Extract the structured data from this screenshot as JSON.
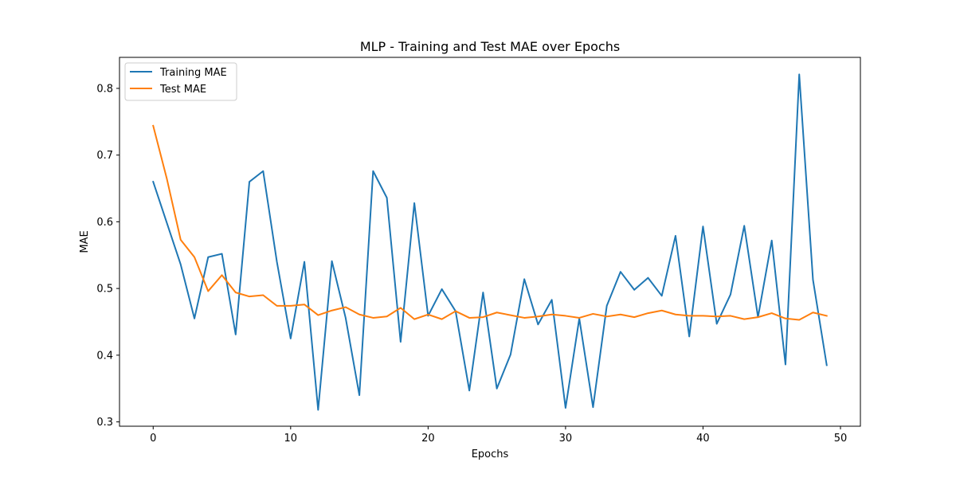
{
  "chart_data": {
    "type": "line",
    "title": "MLP - Training and Test MAE over Epochs",
    "xlabel": "Epochs",
    "ylabel": "MAE",
    "xlim": [
      -2.45,
      51.45
    ],
    "ylim": [
      0.2935,
      0.8465
    ],
    "xticks": [
      0,
      10,
      20,
      30,
      40,
      50
    ],
    "yticks": [
      0.3,
      0.4,
      0.5,
      0.6,
      0.7,
      0.8
    ],
    "grid": false,
    "legend_position": "top-left",
    "x": [
      0,
      1,
      2,
      3,
      4,
      5,
      6,
      7,
      8,
      9,
      10,
      11,
      12,
      13,
      14,
      15,
      16,
      17,
      18,
      19,
      20,
      21,
      22,
      23,
      24,
      25,
      26,
      27,
      28,
      29,
      30,
      31,
      32,
      33,
      34,
      35,
      36,
      37,
      38,
      39,
      40,
      41,
      42,
      43,
      44,
      45,
      46,
      47,
      48,
      49
    ],
    "series": [
      {
        "name": "Training MAE",
        "color": "#1f77b4",
        "values": [
          0.66,
          0.598,
          0.536,
          0.455,
          0.547,
          0.552,
          0.431,
          0.66,
          0.676,
          0.54,
          0.425,
          0.54,
          0.318,
          0.541,
          0.456,
          0.34,
          0.676,
          0.636,
          0.42,
          0.628,
          0.459,
          0.499,
          0.466,
          0.347,
          0.494,
          0.35,
          0.401,
          0.514,
          0.446,
          0.483,
          0.321,
          0.455,
          0.322,
          0.474,
          0.525,
          0.498,
          0.516,
          0.489,
          0.579,
          0.428,
          0.593,
          0.447,
          0.491,
          0.594,
          0.457,
          0.572,
          0.386,
          0.821,
          0.513,
          0.385
        ]
      },
      {
        "name": "Test MAE",
        "color": "#ff7f0e",
        "values": [
          0.744,
          0.664,
          0.573,
          0.547,
          0.496,
          0.52,
          0.494,
          0.488,
          0.49,
          0.474,
          0.474,
          0.476,
          0.46,
          0.467,
          0.472,
          0.461,
          0.456,
          0.458,
          0.471,
          0.454,
          0.461,
          0.454,
          0.466,
          0.456,
          0.457,
          0.464,
          0.46,
          0.456,
          0.458,
          0.461,
          0.459,
          0.456,
          0.462,
          0.458,
          0.461,
          0.457,
          0.463,
          0.467,
          0.461,
          0.459,
          0.459,
          0.458,
          0.459,
          0.454,
          0.457,
          0.463,
          0.455,
          0.453,
          0.464,
          0.459
        ]
      }
    ]
  }
}
